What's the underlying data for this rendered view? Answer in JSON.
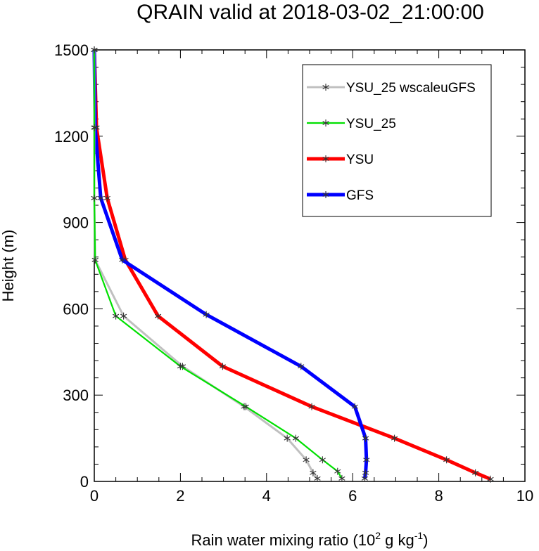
{
  "chart_data": {
    "type": "line",
    "title": "QRAIN valid at 2018-03-02_21:00:00",
    "xlabel": {
      "prefix": "Rain water mixing ratio (10",
      "sup1": "2",
      "mid": " g kg",
      "sup2": "-1",
      "suffix": ")"
    },
    "ylabel": "Height (m)",
    "xlim": [
      0,
      10
    ],
    "ylim": [
      0,
      1500
    ],
    "xticks": [
      0,
      2,
      4,
      6,
      8,
      10
    ],
    "yticks": [
      0,
      300,
      600,
      900,
      1200,
      1500
    ],
    "legend_position": "top-right",
    "series": [
      {
        "name": "YSU_25 wscaleuGFS",
        "color": "#c0c0c0",
        "points": [
          [
            5.18,
            10
          ],
          [
            5.08,
            30
          ],
          [
            4.92,
            75
          ],
          [
            4.48,
            150
          ],
          [
            3.48,
            260
          ],
          [
            2.05,
            400
          ],
          [
            0.68,
            575
          ],
          [
            0.02,
            770
          ],
          [
            0.0,
            985
          ],
          [
            0.0,
            1230
          ],
          [
            0.0,
            1500
          ]
        ]
      },
      {
        "name": "YSU_25",
        "color": "#00e000",
        "points": [
          [
            5.75,
            10
          ],
          [
            5.65,
            35
          ],
          [
            5.3,
            75
          ],
          [
            4.68,
            150
          ],
          [
            3.52,
            260
          ],
          [
            2.0,
            400
          ],
          [
            0.5,
            575
          ],
          [
            0.02,
            770
          ],
          [
            0.0,
            985
          ],
          [
            0.0,
            1230
          ],
          [
            0.0,
            1500
          ]
        ]
      },
      {
        "name": "YSU",
        "color": "#ff0000",
        "points": [
          [
            9.2,
            8
          ],
          [
            8.85,
            30
          ],
          [
            8.18,
            75
          ],
          [
            6.97,
            150
          ],
          [
            5.05,
            260
          ],
          [
            2.98,
            400
          ],
          [
            1.48,
            575
          ],
          [
            0.72,
            770
          ],
          [
            0.3,
            985
          ],
          [
            0.05,
            1230
          ],
          [
            0.0,
            1500
          ]
        ]
      },
      {
        "name": "GFS",
        "color": "#0000ff",
        "points": [
          [
            6.28,
            10
          ],
          [
            6.3,
            30
          ],
          [
            6.32,
            75
          ],
          [
            6.3,
            150
          ],
          [
            6.05,
            260
          ],
          [
            4.8,
            400
          ],
          [
            2.6,
            580
          ],
          [
            0.65,
            770
          ],
          [
            0.15,
            985
          ],
          [
            0.02,
            1230
          ],
          [
            0.0,
            1500
          ]
        ]
      }
    ]
  }
}
